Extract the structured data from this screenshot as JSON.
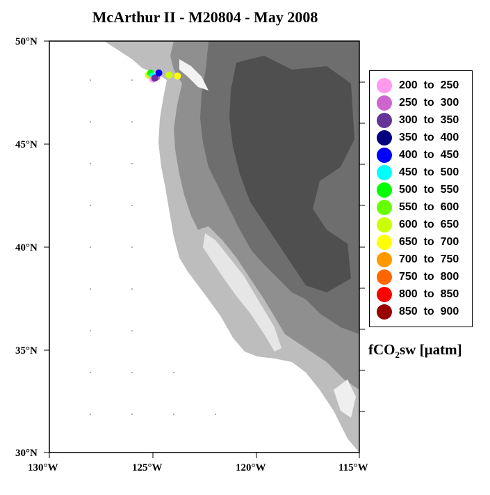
{
  "title": "McArthur II - M20804 - May 2008",
  "axes": {
    "lat_labels": [
      "50°N",
      "45°N",
      "40°N",
      "35°N",
      "30°N"
    ],
    "lon_labels": [
      "130°W",
      "125°W",
      "120°W",
      "115°W"
    ]
  },
  "legend": {
    "items": [
      {
        "lo": "200",
        "to": "to",
        "hi": "250",
        "color": "#ff99ee"
      },
      {
        "lo": "250",
        "to": "to",
        "hi": "300",
        "color": "#cc66cc"
      },
      {
        "lo": "300",
        "to": "to",
        "hi": "350",
        "color": "#663399"
      },
      {
        "lo": "350",
        "to": "to",
        "hi": "400",
        "color": "#000080"
      },
      {
        "lo": "400",
        "to": "to",
        "hi": "450",
        "color": "#0000ff"
      },
      {
        "lo": "450",
        "to": "to",
        "hi": "500",
        "color": "#00ffff"
      },
      {
        "lo": "500",
        "to": "to",
        "hi": "550",
        "color": "#00ff00"
      },
      {
        "lo": "550",
        "to": "to",
        "hi": "600",
        "color": "#66ff00"
      },
      {
        "lo": "600",
        "to": "to",
        "hi": "650",
        "color": "#ccff00"
      },
      {
        "lo": "650",
        "to": "to",
        "hi": "700",
        "color": "#ffff00"
      },
      {
        "lo": "700",
        "to": "to",
        "hi": "750",
        "color": "#ff9900"
      },
      {
        "lo": "750",
        "to": "to",
        "hi": "800",
        "color": "#ff6600"
      },
      {
        "lo": "800",
        "to": "to",
        "hi": "850",
        "color": "#ff0000"
      },
      {
        "lo": "850",
        "to": "to",
        "hi": "900",
        "color": "#990000"
      }
    ],
    "units_pre": "fCO",
    "units_sub": "2",
    "units_post": "sw [µatm]"
  },
  "chart_data": {
    "type": "scatter",
    "title": "McArthur II - M20804 - May 2008",
    "xlabel": "",
    "ylabel": "",
    "xlim": [
      -130,
      -115
    ],
    "ylim": [
      30,
      50
    ],
    "colorbar_label": "fCO2sw [µatm]",
    "points": [
      {
        "lon": -125.2,
        "lat": 48.35,
        "fco2": 620
      },
      {
        "lon": -125.1,
        "lat": 48.45,
        "fco2": 520
      },
      {
        "lon": -125.0,
        "lat": 48.3,
        "fco2": 480
      },
      {
        "lon": -124.8,
        "lat": 48.25,
        "fco2": 280
      },
      {
        "lon": -125.0,
        "lat": 48.15,
        "fco2": 230
      },
      {
        "lon": -124.9,
        "lat": 48.2,
        "fco2": 320
      },
      {
        "lon": -124.7,
        "lat": 48.45,
        "fco2": 420
      },
      {
        "lon": -124.2,
        "lat": 48.35,
        "fco2": 640
      },
      {
        "lon": -123.8,
        "lat": 48.3,
        "fco2": 660
      }
    ]
  }
}
